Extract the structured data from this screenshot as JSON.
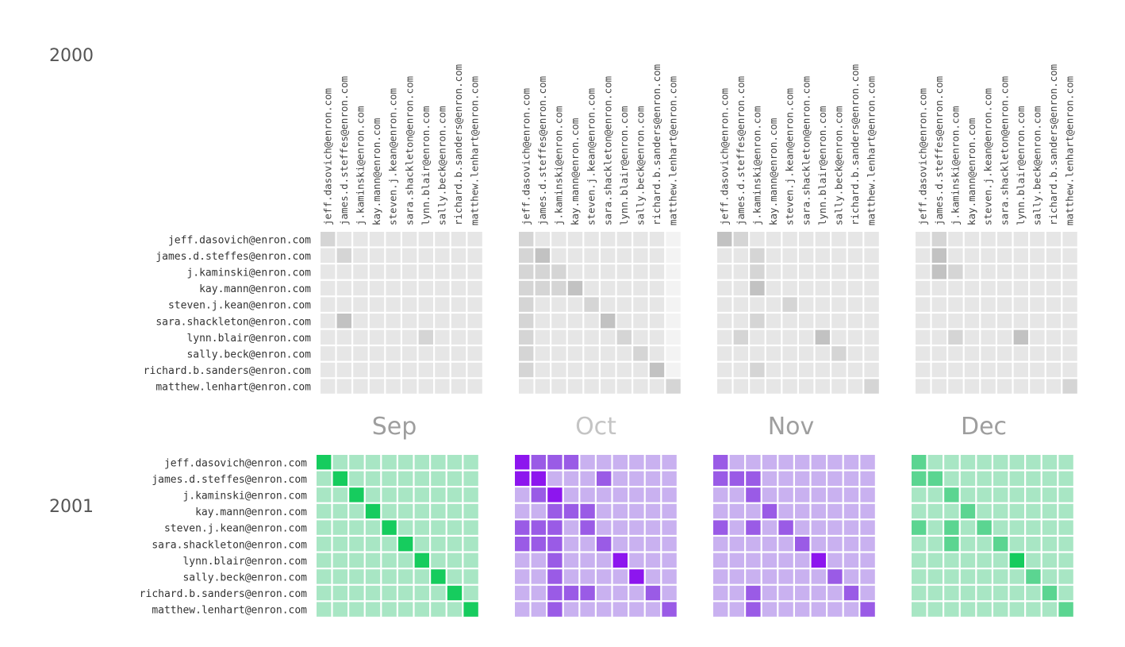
{
  "chart_data": {
    "type": "heatmap",
    "title": "",
    "people": [
      "jeff.dasovich@enron.com",
      "james.d.steffes@enron.com",
      "j.kaminski@enron.com",
      "kay.mann@enron.com",
      "steven.j.kean@enron.com",
      "sara.shackleton@enron.com",
      "lynn.blair@enron.com",
      "sally.beck@enron.com",
      "richard.b.sanders@enron.com",
      "matthew.lenhart@enron.com"
    ],
    "months": [
      "Sep",
      "Oct",
      "Nov",
      "Dec"
    ],
    "years": [
      "2000",
      "2001"
    ],
    "colors": {
      "2000": {
        "bg": "#f3f3f3",
        "low": "#e6e6e6",
        "mid": "#d5d5d5",
        "high": "#c2c2c2"
      },
      "Sep_2001": {
        "low": "#a8e6c4",
        "mid": "#5bd591",
        "high": "#16cc5e"
      },
      "Oct_2001": {
        "low": "#c9b1f0",
        "mid": "#9a5be6",
        "high": "#8d16ee"
      },
      "Nov_2001": {
        "low": "#c9b1f0",
        "mid": "#9a5be6",
        "high": "#8d16ee"
      },
      "Dec_2001": {
        "low": "#a8e6c4",
        "mid": "#5bd591",
        "high": "#16cc5e"
      },
      "month_label_active": "#9e9e9e",
      "month_label_faded": "#c4c4c4"
    },
    "levels_note_scale": [
      0,
      1,
      2,
      3
    ],
    "matrices": {
      "2000": [
        [
          [
            2,
            1,
            1,
            1,
            1,
            1,
            1,
            1,
            1,
            1
          ],
          [
            1,
            2,
            1,
            1,
            1,
            1,
            1,
            1,
            1,
            1
          ],
          [
            1,
            1,
            1,
            1,
            1,
            1,
            1,
            1,
            1,
            1
          ],
          [
            1,
            1,
            1,
            1,
            1,
            1,
            1,
            1,
            1,
            1
          ],
          [
            1,
            1,
            1,
            1,
            1,
            1,
            1,
            1,
            1,
            1
          ],
          [
            1,
            3,
            1,
            1,
            1,
            1,
            1,
            1,
            1,
            1
          ],
          [
            1,
            1,
            1,
            1,
            1,
            1,
            2,
            1,
            1,
            1
          ],
          [
            1,
            1,
            1,
            1,
            1,
            1,
            1,
            1,
            1,
            1
          ],
          [
            1,
            1,
            1,
            1,
            1,
            1,
            1,
            1,
            1,
            1
          ],
          [
            1,
            1,
            1,
            1,
            1,
            1,
            1,
            1,
            1,
            1
          ]
        ],
        [
          [
            2,
            1,
            1,
            1,
            1,
            1,
            1,
            1,
            1,
            0
          ],
          [
            2,
            3,
            1,
            1,
            1,
            1,
            1,
            1,
            1,
            0
          ],
          [
            2,
            2,
            2,
            1,
            1,
            1,
            1,
            1,
            1,
            0
          ],
          [
            2,
            2,
            2,
            3,
            1,
            1,
            1,
            1,
            1,
            0
          ],
          [
            2,
            1,
            1,
            1,
            2,
            1,
            1,
            1,
            1,
            0
          ],
          [
            2,
            1,
            1,
            1,
            1,
            3,
            1,
            1,
            1,
            0
          ],
          [
            2,
            1,
            1,
            1,
            1,
            1,
            2,
            1,
            1,
            0
          ],
          [
            2,
            1,
            1,
            1,
            1,
            1,
            1,
            2,
            1,
            0
          ],
          [
            2,
            1,
            1,
            1,
            1,
            1,
            1,
            1,
            3,
            0
          ],
          [
            1,
            1,
            1,
            1,
            1,
            1,
            1,
            1,
            1,
            2
          ]
        ],
        [
          [
            3,
            2,
            1,
            1,
            1,
            1,
            1,
            1,
            1,
            1
          ],
          [
            1,
            1,
            2,
            1,
            1,
            1,
            1,
            1,
            1,
            1
          ],
          [
            1,
            1,
            2,
            1,
            1,
            1,
            1,
            1,
            1,
            1
          ],
          [
            1,
            1,
            3,
            1,
            1,
            1,
            1,
            1,
            1,
            1
          ],
          [
            1,
            1,
            1,
            1,
            2,
            1,
            1,
            1,
            1,
            1
          ],
          [
            1,
            1,
            2,
            1,
            1,
            1,
            1,
            1,
            1,
            1
          ],
          [
            1,
            2,
            1,
            1,
            1,
            1,
            3,
            1,
            1,
            1
          ],
          [
            1,
            1,
            1,
            1,
            1,
            1,
            1,
            2,
            1,
            1
          ],
          [
            1,
            1,
            2,
            1,
            1,
            1,
            1,
            1,
            1,
            1
          ],
          [
            1,
            1,
            1,
            1,
            1,
            1,
            1,
            1,
            1,
            2
          ]
        ],
        [
          [
            1,
            2,
            1,
            1,
            1,
            1,
            1,
            1,
            1,
            1
          ],
          [
            1,
            3,
            1,
            1,
            1,
            1,
            1,
            1,
            1,
            1
          ],
          [
            1,
            3,
            2,
            1,
            1,
            1,
            1,
            1,
            1,
            1
          ],
          [
            1,
            1,
            1,
            1,
            1,
            1,
            1,
            1,
            1,
            1
          ],
          [
            1,
            1,
            1,
            1,
            1,
            1,
            1,
            1,
            1,
            1
          ],
          [
            1,
            1,
            1,
            1,
            1,
            1,
            1,
            1,
            1,
            1
          ],
          [
            1,
            1,
            2,
            1,
            1,
            1,
            3,
            1,
            1,
            1
          ],
          [
            1,
            1,
            1,
            1,
            1,
            1,
            1,
            1,
            1,
            1
          ],
          [
            1,
            1,
            1,
            1,
            1,
            1,
            1,
            1,
            1,
            1
          ],
          [
            1,
            1,
            1,
            1,
            1,
            1,
            1,
            1,
            1,
            2
          ]
        ]
      ],
      "2001": [
        [
          [
            3,
            1,
            1,
            1,
            1,
            1,
            1,
            1,
            1,
            1
          ],
          [
            1,
            3,
            1,
            1,
            1,
            1,
            1,
            1,
            1,
            1
          ],
          [
            1,
            1,
            3,
            1,
            1,
            1,
            1,
            1,
            1,
            1
          ],
          [
            1,
            1,
            1,
            3,
            1,
            1,
            1,
            1,
            1,
            1
          ],
          [
            1,
            1,
            1,
            1,
            3,
            1,
            1,
            1,
            1,
            1
          ],
          [
            1,
            1,
            1,
            1,
            1,
            3,
            1,
            1,
            1,
            1
          ],
          [
            1,
            1,
            1,
            1,
            1,
            1,
            3,
            1,
            1,
            1
          ],
          [
            1,
            1,
            1,
            1,
            1,
            1,
            1,
            3,
            1,
            1
          ],
          [
            1,
            1,
            1,
            1,
            1,
            1,
            1,
            1,
            3,
            1
          ],
          [
            1,
            1,
            1,
            1,
            1,
            1,
            1,
            1,
            1,
            3
          ]
        ],
        [
          [
            3,
            2,
            2,
            2,
            1,
            1,
            1,
            1,
            1,
            1
          ],
          [
            3,
            3,
            1,
            1,
            1,
            2,
            1,
            1,
            1,
            1
          ],
          [
            1,
            2,
            3,
            1,
            1,
            1,
            1,
            1,
            1,
            1
          ],
          [
            1,
            1,
            2,
            2,
            2,
            1,
            1,
            1,
            1,
            1
          ],
          [
            2,
            2,
            2,
            1,
            2,
            1,
            1,
            1,
            1,
            1
          ],
          [
            2,
            2,
            2,
            1,
            1,
            2,
            1,
            1,
            1,
            1
          ],
          [
            1,
            1,
            2,
            1,
            1,
            1,
            3,
            1,
            1,
            1
          ],
          [
            1,
            1,
            2,
            1,
            1,
            1,
            1,
            3,
            1,
            1
          ],
          [
            1,
            1,
            2,
            2,
            2,
            1,
            1,
            1,
            2,
            1
          ],
          [
            1,
            1,
            2,
            1,
            1,
            1,
            1,
            1,
            1,
            2
          ]
        ],
        [
          [
            2,
            1,
            1,
            1,
            1,
            1,
            1,
            1,
            1,
            1
          ],
          [
            2,
            2,
            2,
            1,
            1,
            1,
            1,
            1,
            1,
            1
          ],
          [
            1,
            1,
            2,
            1,
            1,
            1,
            1,
            1,
            1,
            1
          ],
          [
            1,
            1,
            1,
            2,
            1,
            1,
            1,
            1,
            1,
            1
          ],
          [
            2,
            1,
            2,
            1,
            2,
            1,
            1,
            1,
            1,
            1
          ],
          [
            1,
            1,
            1,
            1,
            1,
            2,
            1,
            1,
            1,
            1
          ],
          [
            1,
            1,
            1,
            1,
            1,
            1,
            3,
            1,
            1,
            1
          ],
          [
            1,
            1,
            1,
            1,
            1,
            1,
            1,
            2,
            1,
            1
          ],
          [
            1,
            1,
            2,
            1,
            1,
            1,
            1,
            1,
            2,
            1
          ],
          [
            1,
            1,
            2,
            1,
            1,
            1,
            1,
            1,
            1,
            2
          ]
        ],
        [
          [
            2,
            1,
            1,
            1,
            1,
            1,
            1,
            1,
            1,
            1
          ],
          [
            2,
            2,
            1,
            1,
            1,
            1,
            1,
            1,
            1,
            1
          ],
          [
            1,
            1,
            2,
            1,
            1,
            1,
            1,
            1,
            1,
            1
          ],
          [
            1,
            1,
            1,
            2,
            1,
            1,
            1,
            1,
            1,
            1
          ],
          [
            2,
            1,
            2,
            1,
            2,
            1,
            1,
            1,
            1,
            1
          ],
          [
            1,
            1,
            2,
            1,
            1,
            2,
            1,
            1,
            1,
            1
          ],
          [
            1,
            1,
            1,
            1,
            1,
            1,
            3,
            1,
            1,
            1
          ],
          [
            1,
            1,
            1,
            1,
            1,
            1,
            1,
            2,
            1,
            1
          ],
          [
            1,
            1,
            1,
            1,
            1,
            1,
            1,
            1,
            2,
            1
          ],
          [
            1,
            1,
            1,
            1,
            1,
            1,
            1,
            1,
            1,
            2
          ]
        ]
      ]
    }
  }
}
